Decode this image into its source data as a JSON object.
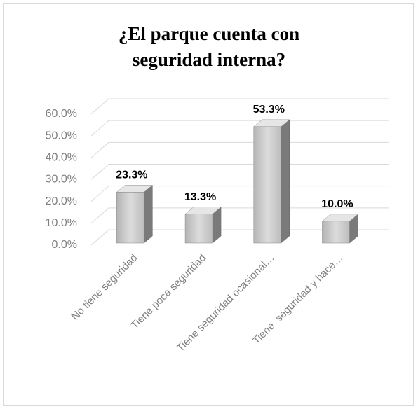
{
  "chart_data": {
    "type": "bar3d",
    "title": "¿El parque cuenta con seguridad interna?",
    "categories": [
      "No tiene seguridad",
      "Tiene poca seguridad",
      "Tiene seguridad ocasional…",
      "Tiene  seguridad y hace…"
    ],
    "values": [
      23.3,
      13.3,
      53.3,
      10.0
    ],
    "value_labels": [
      "23.3%",
      "13.3%",
      "53.3%",
      "10.0%"
    ],
    "color": "#c8c8c8",
    "ylim": [
      0,
      60
    ],
    "yticks": [
      {
        "value": 0,
        "label": "0.0%"
      },
      {
        "value": 10,
        "label": "10.0%"
      },
      {
        "value": 20,
        "label": "20.0%"
      },
      {
        "value": 30,
        "label": "30.0%"
      },
      {
        "value": 40,
        "label": "40.0%"
      },
      {
        "value": 50,
        "label": "50.0%"
      },
      {
        "value": 60,
        "label": "60.0%"
      }
    ],
    "grid": true
  }
}
